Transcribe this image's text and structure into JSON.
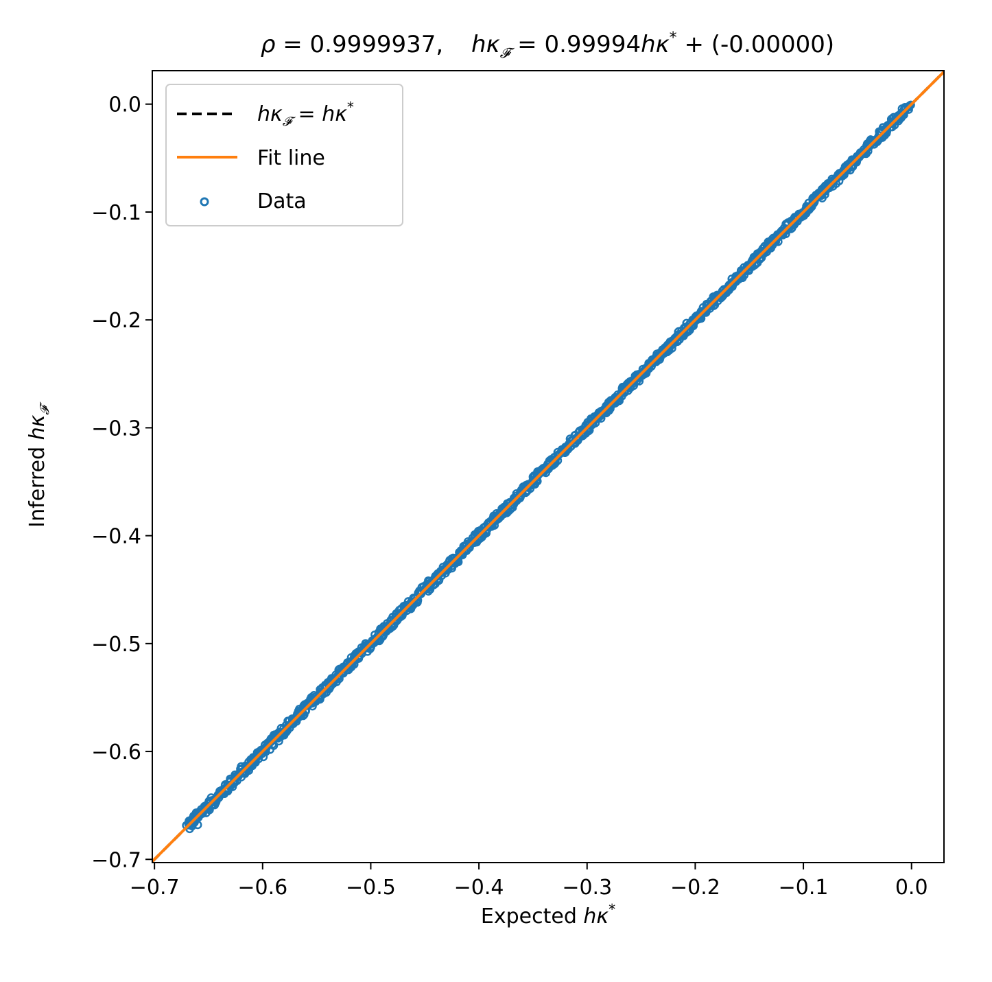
{
  "chart_data": {
    "type": "scatter",
    "title": {
      "rho_symbol": "ρ",
      "rho_value": "= 0.9999937,",
      "fit_prefix": "hκ",
      "fit_sub": "𝓕",
      "fit_middle": " = 0.99994",
      "fit_var": "hκ",
      "fit_sup": "*",
      "fit_suffix": " + (-0.00000)"
    },
    "xlabel": {
      "text": "Expected ",
      "var": "hκ",
      "sup": "*"
    },
    "ylabel": {
      "text": "Inferred ",
      "var": "hκ",
      "sub": "𝓕"
    },
    "xlim": [
      -0.702,
      0.03
    ],
    "ylim": [
      -0.703,
      0.031
    ],
    "xticks": [
      -0.7,
      -0.6,
      -0.5,
      -0.4,
      -0.3,
      -0.2,
      -0.1,
      0.0
    ],
    "xtick_labels": [
      "−0.7",
      "−0.6",
      "−0.5",
      "−0.4",
      "−0.3",
      "−0.2",
      "−0.1",
      "0.0"
    ],
    "yticks": [
      0.0,
      -0.1,
      -0.2,
      -0.3,
      -0.4,
      -0.5,
      -0.6,
      -0.7
    ],
    "ytick_labels": [
      "0.0",
      "−0.1",
      "−0.2",
      "−0.3",
      "−0.4",
      "−0.5",
      "−0.6",
      "−0.7"
    ],
    "grid": false,
    "legend_position": "top-left",
    "series": [
      {
        "name": "hκ𝓕 = hκ*",
        "legend_var": "hκ",
        "legend_sub": "𝓕",
        "legend_eq": " = ",
        "legend_var2": "hκ",
        "legend_sup": "*",
        "kind": "line",
        "style": "dashed",
        "color": "#000000",
        "x": [
          -0.702,
          0.03
        ],
        "y": [
          -0.702,
          0.03
        ]
      },
      {
        "name": "Fit line",
        "kind": "line",
        "style": "solid",
        "color": "#ff7f0e",
        "slope": 0.99994,
        "intercept": 0.0,
        "x": [
          -0.702,
          0.03
        ],
        "y": [
          -0.70196,
          0.03
        ]
      },
      {
        "name": "Data",
        "kind": "scatter",
        "marker": "open-circle",
        "color": "#1f77b4",
        "x_range": [
          -0.67,
          -0.002
        ],
        "y_range": [
          -0.67,
          -0.002
        ]
      }
    ]
  }
}
